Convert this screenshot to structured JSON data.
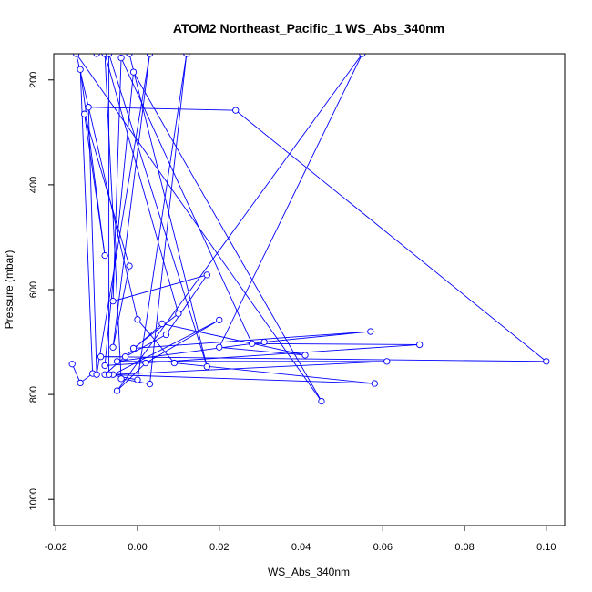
{
  "chart_data": {
    "type": "line",
    "title": "ATOM2 Northeast_Pacific_1 WS_Abs_340nm",
    "xlabel": "WS_Abs_340nm",
    "ylabel": "Pressure (mbar)",
    "xlim": [
      -0.0205,
      0.1045
    ],
    "ylim": [
      1050,
      150
    ],
    "y_reversed": true,
    "x_ticks": [
      -0.02,
      0.0,
      0.02,
      0.04,
      0.06,
      0.08,
      0.1
    ],
    "x_tick_labels": [
      "-0.02",
      "0.00",
      "0.02",
      "0.04",
      "0.06",
      "0.08",
      "0.10"
    ],
    "y_ticks": [
      200,
      400,
      600,
      800,
      1000
    ],
    "y_tick_labels": [
      "200",
      "400",
      "600",
      "800",
      "1000"
    ],
    "grid": false,
    "legend": "none",
    "color": "#0000ff",
    "marker": "open-circle",
    "series": [
      {
        "points": [
          [
            -0.016,
            742
          ],
          [
            -0.014,
            778
          ],
          [
            -0.011,
            760
          ],
          [
            -0.014,
            180
          ],
          [
            -0.008,
            535
          ],
          [
            -0.013,
            265
          ],
          [
            -0.002,
            555
          ],
          [
            -0.006,
            710
          ],
          [
            0.003,
            150
          ],
          [
            -0.01,
            762
          ],
          [
            -0.012,
            252
          ],
          [
            0.024,
            258
          ],
          [
            0.1,
            737
          ],
          [
            -0.009,
            728
          ],
          [
            -0.003,
            728
          ],
          [
            0.007,
            686
          ],
          [
            0.017,
            572
          ],
          [
            -0.006,
            622
          ],
          [
            -0.004,
            158
          ],
          [
            0.028,
            703
          ],
          [
            0.069,
            705
          ],
          [
            -0.008,
            745
          ],
          [
            -0.001,
            185
          ],
          [
            0.045,
            813
          ],
          [
            -0.015,
            150
          ],
          [
            0.0,
            657
          ],
          [
            0.009,
            740
          ],
          [
            0.058,
            779
          ],
          [
            -0.008,
            762
          ],
          [
            0.006,
            665
          ],
          [
            0.041,
            725
          ],
          [
            0.02,
            710
          ],
          [
            0.055,
            150
          ],
          [
            -0.005,
            793
          ],
          [
            0.002,
            740
          ],
          [
            0.02,
            658
          ],
          [
            -0.006,
            762
          ],
          [
            0.061,
            737
          ],
          [
            -0.005,
            737
          ],
          [
            0.031,
            700
          ],
          [
            0.057,
            680
          ],
          [
            -0.001,
            712
          ],
          [
            0.01,
            646
          ],
          [
            -0.008,
            150
          ],
          [
            -0.004,
            770
          ],
          [
            0.003,
            780
          ],
          [
            0.012,
            150
          ],
          [
            0.0,
            772
          ],
          [
            -0.007,
            762
          ],
          [
            -0.007,
            150
          ],
          [
            0.017,
            747
          ],
          [
            -0.002,
            150
          ],
          [
            -0.01,
            150
          ]
        ]
      }
    ]
  }
}
